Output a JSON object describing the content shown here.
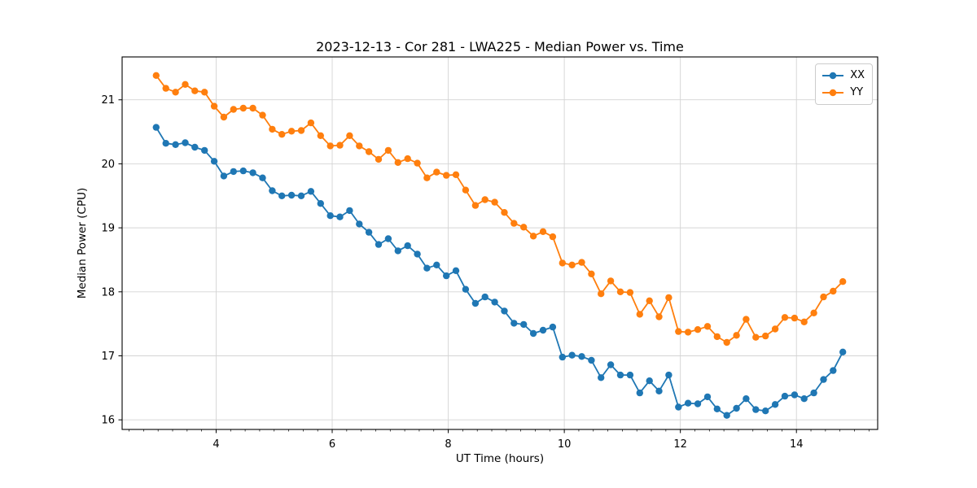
{
  "chart_data": {
    "type": "line",
    "title": "2023-12-13 - Cor 281 - LWA225 - Median Power vs. Time",
    "xlabel": "UT Time (hours)",
    "ylabel": "Median Power (CPU)",
    "xlim": [
      2.38,
      15.4
    ],
    "ylim": [
      15.85,
      21.67
    ],
    "xticks": [
      4,
      6,
      8,
      10,
      12,
      14
    ],
    "yticks": [
      16,
      17,
      18,
      19,
      20,
      21
    ],
    "x_minor_tick_step": 0.25,
    "grid": true,
    "legend": {
      "location": "upper right"
    },
    "marker": "circle",
    "x": [
      2.967,
      3.133,
      3.3,
      3.467,
      3.633,
      3.8,
      3.967,
      4.133,
      4.3,
      4.467,
      4.633,
      4.8,
      4.967,
      5.133,
      5.3,
      5.467,
      5.633,
      5.8,
      5.967,
      6.133,
      6.3,
      6.467,
      6.633,
      6.8,
      6.967,
      7.133,
      7.3,
      7.467,
      7.633,
      7.8,
      7.967,
      8.133,
      8.3,
      8.467,
      8.633,
      8.8,
      8.967,
      9.133,
      9.3,
      9.467,
      9.633,
      9.8,
      9.967,
      10.133,
      10.3,
      10.467,
      10.633,
      10.8,
      10.967,
      11.133,
      11.3,
      11.467,
      11.633,
      11.8,
      11.967,
      12.133,
      12.3,
      12.467,
      12.633,
      12.8,
      12.967,
      13.133,
      13.3,
      13.467,
      13.633,
      13.8,
      13.967,
      14.133,
      14.3,
      14.467,
      14.633,
      14.8
    ],
    "series": [
      {
        "name": "XX",
        "color": "#1f77b4",
        "values": [
          20.57,
          20.32,
          20.3,
          20.33,
          20.26,
          20.21,
          20.04,
          19.81,
          19.88,
          19.89,
          19.86,
          19.78,
          19.58,
          19.5,
          19.51,
          19.5,
          19.57,
          19.38,
          19.19,
          19.17,
          19.27,
          19.06,
          18.93,
          18.74,
          18.83,
          18.64,
          18.72,
          18.59,
          18.37,
          18.42,
          18.25,
          18.33,
          18.04,
          17.82,
          17.92,
          17.84,
          17.7,
          17.51,
          17.49,
          17.35,
          17.4,
          17.45,
          16.98,
          17.01,
          16.99,
          16.93,
          16.66,
          16.86,
          16.7,
          16.7,
          16.42,
          16.61,
          16.45,
          16.7,
          16.2,
          16.26,
          16.25,
          16.36,
          16.17,
          16.07,
          16.18,
          16.33,
          16.16,
          16.14,
          16.24,
          16.37,
          16.39,
          16.33,
          16.42,
          16.63,
          16.77,
          17.06
        ]
      },
      {
        "name": "YY",
        "color": "#ff7f0e",
        "values": [
          21.38,
          21.18,
          21.12,
          21.24,
          21.14,
          21.12,
          20.9,
          20.73,
          20.85,
          20.87,
          20.87,
          20.76,
          20.54,
          20.46,
          20.51,
          20.52,
          20.64,
          20.44,
          20.28,
          20.29,
          20.44,
          20.28,
          20.19,
          20.07,
          20.21,
          20.02,
          20.08,
          20.01,
          19.78,
          19.87,
          19.82,
          19.83,
          19.59,
          19.35,
          19.44,
          19.4,
          19.24,
          19.07,
          19.01,
          18.87,
          18.94,
          18.86,
          18.45,
          18.42,
          18.46,
          18.28,
          17.97,
          18.17,
          18.0,
          17.99,
          17.65,
          17.86,
          17.61,
          17.91,
          17.38,
          17.37,
          17.41,
          17.46,
          17.3,
          17.21,
          17.32,
          17.57,
          17.29,
          17.31,
          17.42,
          17.6,
          17.59,
          17.53,
          17.67,
          17.92,
          18.01,
          18.16
        ]
      }
    ],
    "style": {
      "grid_color": "#d4d4d4",
      "spine_color": "#000000",
      "text_color": "#000000",
      "background": "#ffffff"
    }
  }
}
